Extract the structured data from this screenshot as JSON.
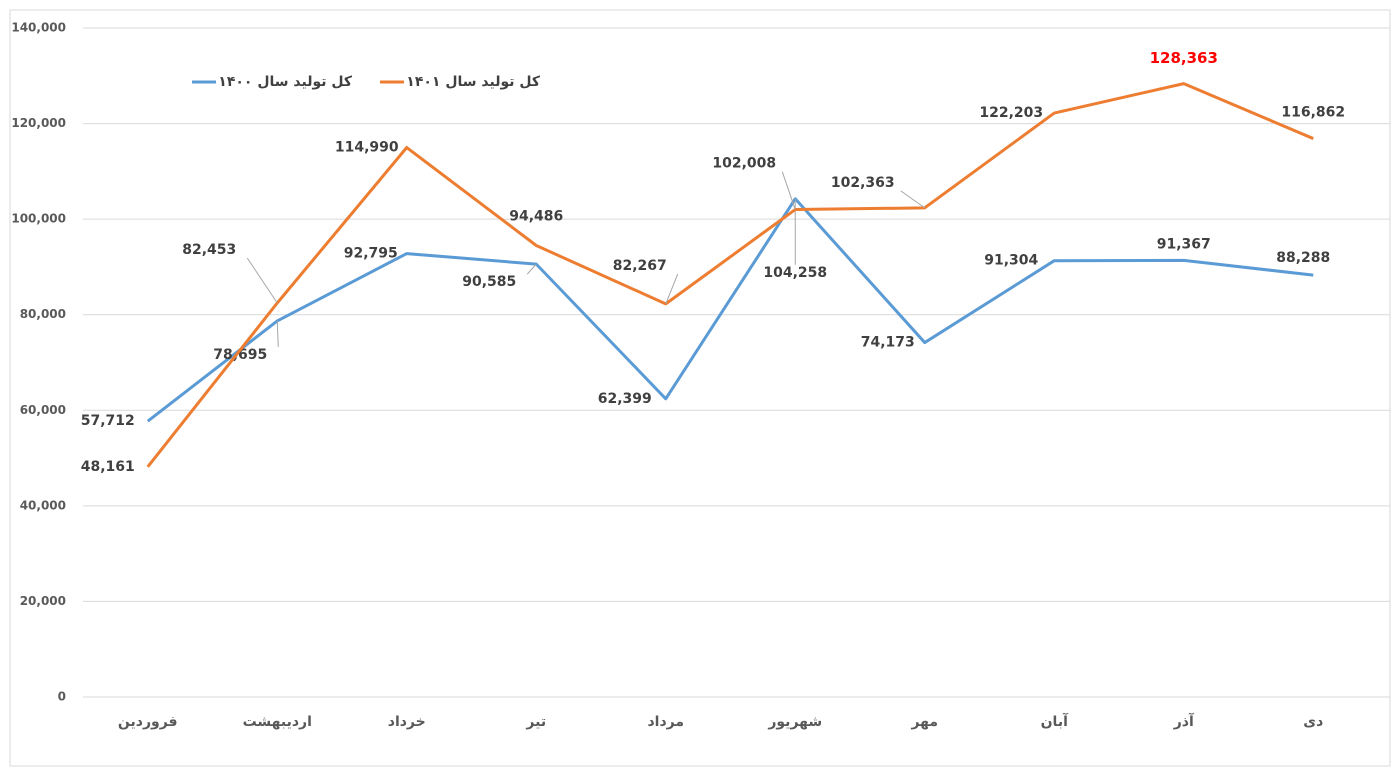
{
  "chart_data": {
    "type": "line",
    "categories": [
      "فروردین",
      "اردیبهشت",
      "خرداد",
      "تیر",
      "مرداد",
      "شهریور",
      "مهر",
      "آبان",
      "آذر",
      "دی"
    ],
    "series": [
      {
        "name": "کل تولید سال ۱۴۰۰",
        "color": "#5b9bd5",
        "values": [
          57712,
          78695,
          92795,
          90585,
          62399,
          104258,
          74173,
          91304,
          91367,
          88288
        ],
        "value_labels": [
          "57,712",
          "78,695",
          "92,795",
          "90,585",
          "62,399",
          "104,258",
          "74,173",
          "91,304",
          "91,367",
          "88,288"
        ]
      },
      {
        "name": "کل تولید سال ۱۴۰۱",
        "color": "#ed7d31",
        "values": [
          48161,
          82453,
          114990,
          94486,
          82267,
          102008,
          102363,
          122203,
          128363,
          116862
        ],
        "value_labels": [
          "48,161",
          "82,453",
          "114,990",
          "94,486",
          "82,267",
          "102,008",
          "102,363",
          "122,203",
          "128,363",
          "116,862"
        ]
      }
    ],
    "ylim": [
      0,
      140000
    ],
    "yticks": [
      0,
      {
        "value": 20000,
        "label": "20,000"
      },
      {
        "value": 40000,
        "label": "40,000"
      },
      {
        "value": 60000,
        "label": "60,000"
      },
      {
        "value": 80000,
        "label": "80,000"
      },
      {
        "value": 100000,
        "label": "100,000"
      },
      {
        "value": 120000,
        "label": "120,000"
      },
      {
        "value": 140000,
        "label": "140,000"
      }
    ],
    "grid": true,
    "legend": "top-left",
    "highlight": "max",
    "highlight_color": "#ff0000"
  }
}
